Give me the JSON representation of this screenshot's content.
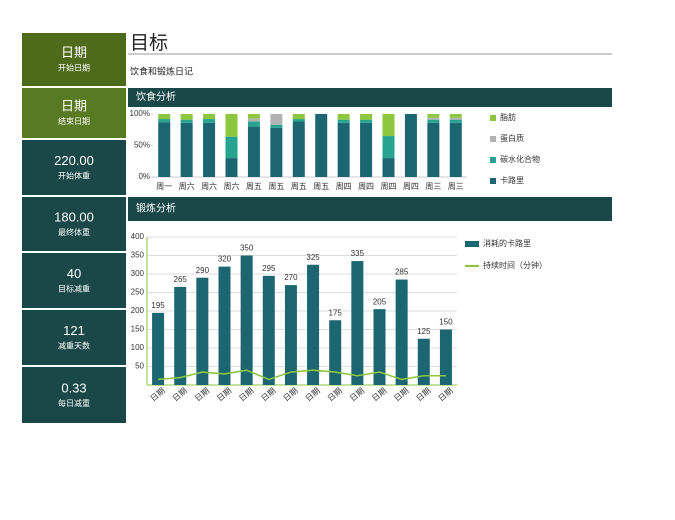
{
  "sidebar": [
    {
      "value": "日期",
      "label": "开始日期",
      "color": "#4e6b1c"
    },
    {
      "value": "日期",
      "label": "结束日期",
      "color": "#587a22"
    },
    {
      "value": "220.00",
      "label": "开始体重",
      "color": "#1a4747"
    },
    {
      "value": "180.00",
      "label": "最终体重",
      "color": "#1a4747"
    },
    {
      "value": "40",
      "label": "目标减重",
      "color": "#1a4747"
    },
    {
      "value": "121",
      "label": "减重天数",
      "color": "#1a4747"
    },
    {
      "value": "0.33",
      "label": "每日减重",
      "color": "#1a4747"
    }
  ],
  "header": {
    "title": "目标",
    "subtitle": "饮食和锻炼日记"
  },
  "diet_chart": {
    "type": "bar",
    "stacked": true,
    "title": "饮食分析",
    "categories": [
      "周一",
      "周六",
      "周六",
      "周六",
      "周五",
      "周五",
      "周五",
      "周五",
      "周四",
      "周四",
      "周四",
      "周四",
      "周三",
      "周三"
    ],
    "series": [
      {
        "name": "卡路里",
        "color": "#1b6670",
        "values": [
          87,
          86,
          86,
          30,
          80,
          78,
          88,
          100,
          86,
          86,
          30,
          100,
          86,
          86
        ]
      },
      {
        "name": "碳水化合物",
        "color": "#27a392",
        "values": [
          5,
          5,
          6,
          34,
          8,
          5,
          4,
          0,
          5,
          5,
          35,
          0,
          5,
          5
        ]
      },
      {
        "name": "蛋白质",
        "color": "#b3b3b3",
        "values": [
          0,
          0,
          0,
          0,
          5,
          17,
          0,
          0,
          0,
          0,
          0,
          0,
          3,
          3
        ]
      },
      {
        "name": "脂肪",
        "color": "#8dc63f",
        "values": [
          8,
          9,
          8,
          36,
          7,
          0,
          8,
          0,
          9,
          9,
          35,
          0,
          6,
          6
        ]
      }
    ],
    "ylim": [
      0,
      100
    ],
    "yticks": [
      {
        "value": 0,
        "label": "0%"
      },
      {
        "value": 50,
        "label": "50%"
      },
      {
        "value": 100,
        "label": "100%"
      }
    ]
  },
  "exercise_chart": {
    "type": "bar-line",
    "title": "锻炼分析",
    "categories": [
      "日期",
      "日期",
      "日期",
      "日期",
      "日期",
      "日期",
      "日期",
      "日期",
      "日期",
      "日期",
      "日期",
      "日期",
      "日期",
      "日期"
    ],
    "series": [
      {
        "name": "消耗的卡路里",
        "type": "bar",
        "color": "#1b6670",
        "values": [
          195,
          265,
          290,
          320,
          350,
          295,
          270,
          325,
          175,
          335,
          205,
          285,
          125,
          150
        ]
      },
      {
        "name": "持续时间（分钟）",
        "type": "line",
        "color": "#8dc63f",
        "values": [
          15,
          20,
          35,
          30,
          40,
          15,
          35,
          40,
          35,
          25,
          35,
          15,
          25,
          25
        ]
      }
    ],
    "ylim": [
      0,
      400
    ],
    "yticks": [
      50,
      100,
      150,
      200,
      250,
      300,
      350,
      400
    ],
    "grid": true
  }
}
